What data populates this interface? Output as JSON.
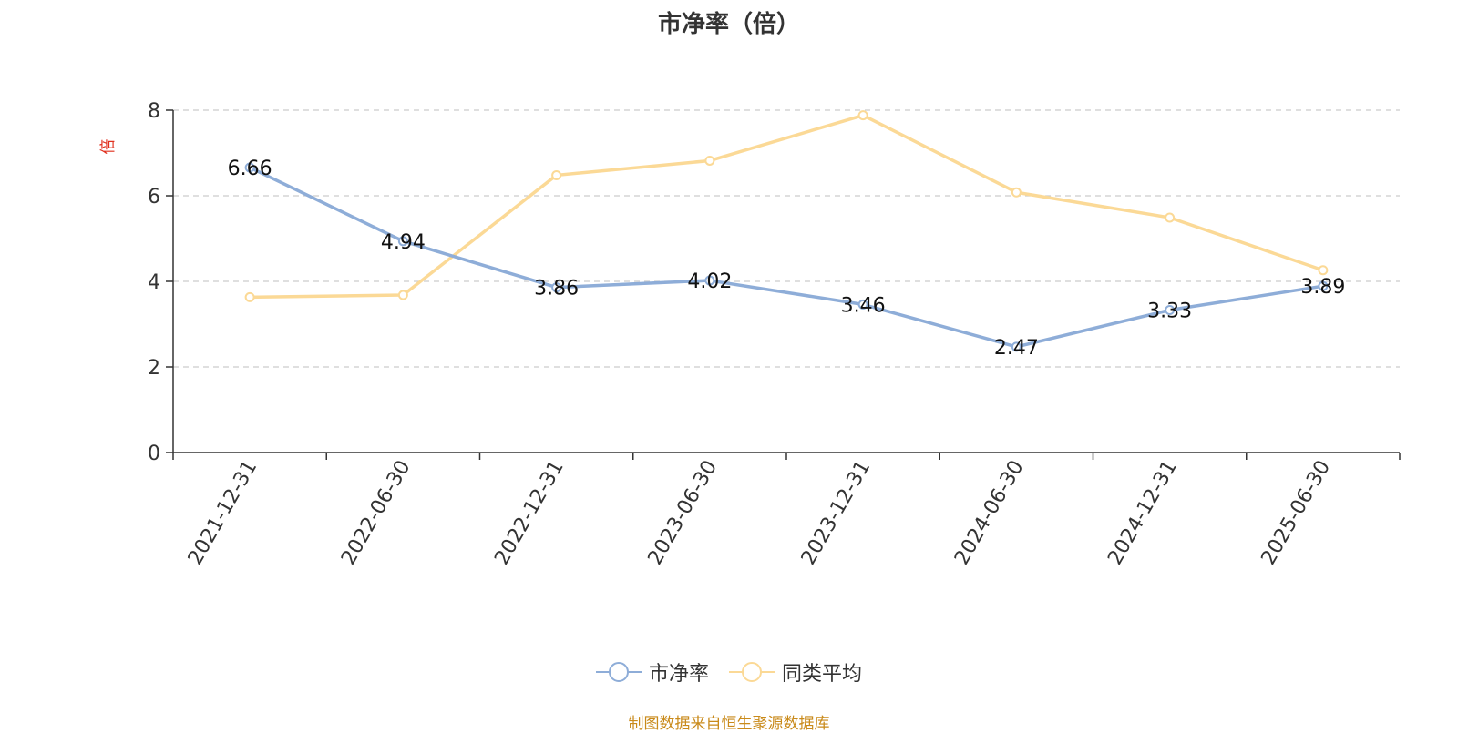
{
  "chart_data": {
    "type": "line",
    "title": "市净率（倍）",
    "ylabel": "倍",
    "ylim": [
      0,
      8
    ],
    "yticks": [
      0,
      2,
      4,
      6,
      8
    ],
    "grid": true,
    "legend_position": "bottom",
    "categories": [
      "2021-12-31",
      "2022-06-30",
      "2022-12-31",
      "2023-06-30",
      "2023-12-31",
      "2024-06-30",
      "2024-12-31",
      "2025-06-30"
    ],
    "series": [
      {
        "name": "市净率",
        "color": "#8eadd8",
        "values": [
          6.66,
          4.94,
          3.86,
          4.02,
          3.46,
          2.47,
          3.33,
          3.89
        ],
        "show_labels": true
      },
      {
        "name": "同类平均",
        "color": "#fbd996",
        "values": [
          3.63,
          3.68,
          6.48,
          6.82,
          7.88,
          6.08,
          5.49,
          4.26
        ],
        "show_labels": false
      }
    ]
  },
  "source_note": "制图数据来自恒生聚源数据库"
}
